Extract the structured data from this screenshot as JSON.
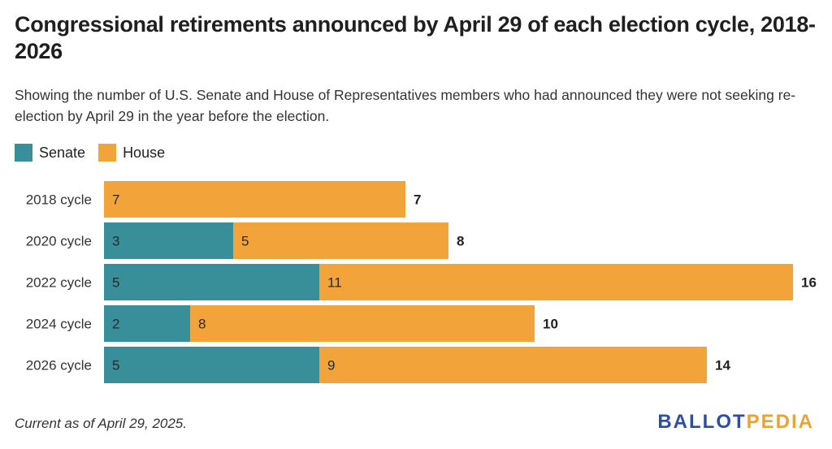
{
  "title": "Congressional retirements announced by April 29 of each election cycle, 2018-2026",
  "subtitle": "Showing the number of U.S. Senate and House of Representatives members who had announced they were not seeking re-election by April 29 in the year before the election.",
  "footer_note": "Current as of April 29, 2025.",
  "brand": {
    "part1": "BALLOT",
    "part2": "PEDIA"
  },
  "colors": {
    "senate": "#388e99",
    "house": "#f2a33a",
    "brand_blue": "#2f4ea3",
    "brand_orange": "#e8a33a"
  },
  "chart_data": {
    "type": "bar",
    "orientation": "horizontal",
    "stacked": true,
    "categories": [
      "2018 cycle",
      "2020 cycle",
      "2022 cycle",
      "2024 cycle",
      "2026 cycle"
    ],
    "series": [
      {
        "name": "Senate",
        "values": [
          0,
          3,
          5,
          2,
          5
        ]
      },
      {
        "name": "House",
        "values": [
          7,
          5,
          11,
          8,
          9
        ]
      }
    ],
    "totals": [
      7,
      8,
      16,
      10,
      14
    ],
    "xlim": [
      0,
      16
    ],
    "grid": false,
    "legend": "top-left"
  }
}
